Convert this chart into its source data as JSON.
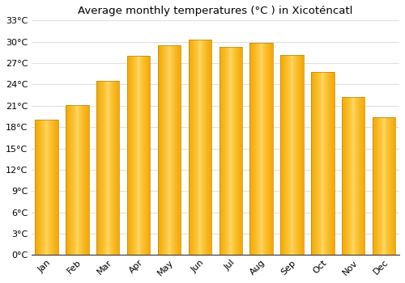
{
  "title": "Average monthly temperatures (°C ) in Xicoténcatl",
  "months": [
    "Jan",
    "Feb",
    "Mar",
    "Apr",
    "May",
    "Jun",
    "Jul",
    "Aug",
    "Sep",
    "Oct",
    "Nov",
    "Dec"
  ],
  "values": [
    19.0,
    21.1,
    24.5,
    28.0,
    29.5,
    30.3,
    29.3,
    29.8,
    28.1,
    25.8,
    22.2,
    19.4
  ],
  "bar_color_center": "#FFD966",
  "bar_color_edge": "#F5A623",
  "bar_edge_color": "#C8850A",
  "ylim": [
    0,
    33
  ],
  "ytick_interval": 3,
  "background_color": "#ffffff",
  "plot_bg_color": "#ffffff",
  "grid_color": "#e0e0e0",
  "bar_width": 0.75,
  "tick_label_fontsize": 8,
  "title_fontsize": 9.5
}
